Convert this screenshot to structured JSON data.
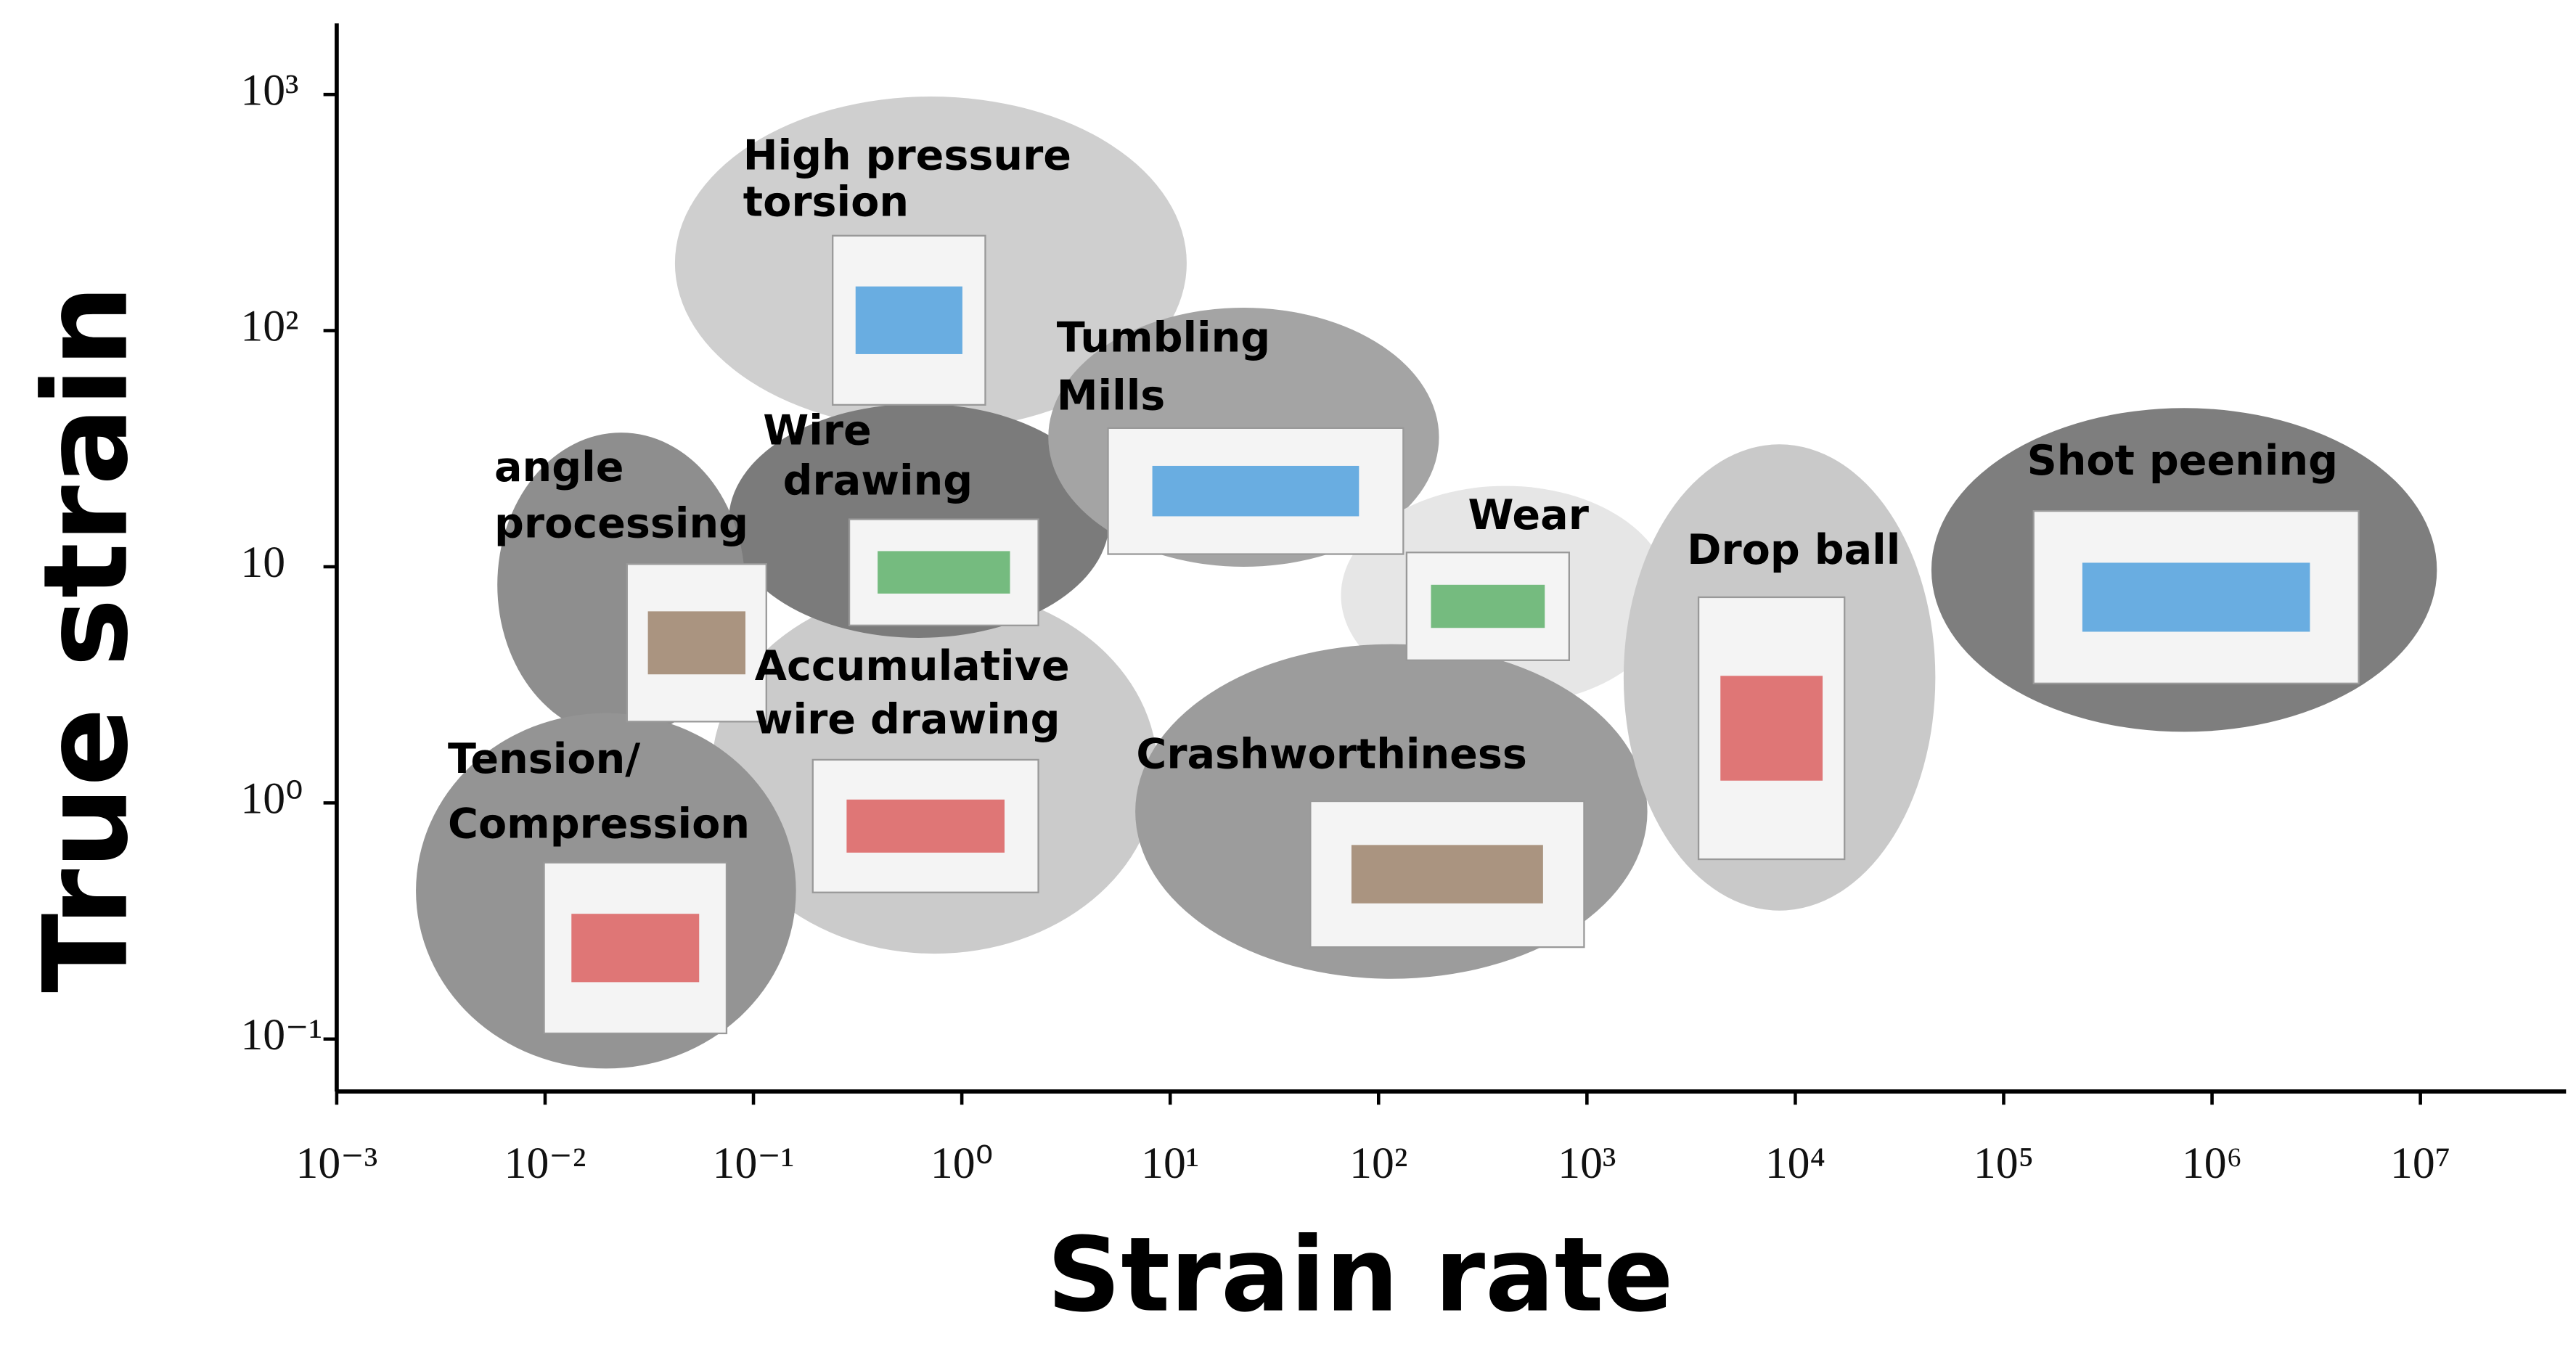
{
  "chart_data": {
    "type": "region",
    "xlabel": "Strain rate",
    "ylabel": "True strain",
    "xscale": "log",
    "yscale": "log",
    "xlim": [
      0.001,
      50000000
    ],
    "ylim": [
      0.06,
      2000
    ],
    "xticks": [
      {
        "value": 0.001,
        "label": "10⁻³"
      },
      {
        "value": 0.01,
        "label": "10⁻²"
      },
      {
        "value": 0.1,
        "label": "10⁻¹"
      },
      {
        "value": 1,
        "label": "10⁰"
      },
      {
        "value": 10,
        "label": "10¹"
      },
      {
        "value": 100,
        "label": "10²"
      },
      {
        "value": 1000,
        "label": "10³"
      },
      {
        "value": 10000,
        "label": "10⁴"
      },
      {
        "value": 100000,
        "label": "10⁵"
      },
      {
        "value": 1000000,
        "label": "10⁶"
      },
      {
        "value": 10000000,
        "label": "10⁷"
      }
    ],
    "yticks": [
      {
        "value": 0.1,
        "label": "10⁻¹"
      },
      {
        "value": 1,
        "label": "10⁰"
      },
      10,
      {
        "value": 100,
        "label": "10²"
      },
      {
        "value": 1000,
        "label": "10³"
      }
    ],
    "regions": [
      {
        "name": [
          "Accumulative",
          "wire drawing"
        ],
        "color": "#cbcbcb",
        "x": [
          0.063,
          8.7
        ],
        "y": [
          0.23,
          8.2
        ]
      },
      {
        "name": [
          "High pressure",
          "torsion"
        ],
        "color": "#cfcfcf",
        "x": [
          0.042,
          12
        ],
        "y": [
          38,
          980
        ]
      },
      {
        "name": [
          "Wire",
          "drawing"
        ],
        "color": "#7b7b7b",
        "x": [
          0.076,
          5.1
        ],
        "y": [
          5,
          49
        ]
      },
      {
        "name": [
          "angle",
          "processing"
        ],
        "color": "#8e8e8e",
        "x": [
          0.0059,
          0.091
        ],
        "y": [
          1.9,
          37
        ]
      },
      {
        "name": [
          "Tension/",
          "Compression"
        ],
        "color": "#949494",
        "x": [
          0.0024,
          0.16
        ],
        "y": [
          0.075,
          2.4
        ]
      },
      {
        "name": [
          "Tumbling",
          "Mills"
        ],
        "color": "#a4a4a4",
        "x": [
          2.6,
          195
        ],
        "y": [
          10,
          125
        ]
      },
      {
        "name": [
          "Wear"
        ],
        "color": "#e6e6e6",
        "x": [
          66,
          2500
        ],
        "y": [
          2.6,
          22
        ]
      },
      {
        "name": [
          "Crashworthiness"
        ],
        "color": "#9c9c9c",
        "x": [
          6.8,
          1950
        ],
        "y": [
          0.18,
          4.7
        ]
      },
      {
        "name": [
          "Drop ball"
        ],
        "color": "#c9c9c9",
        "x": [
          1500,
          47000
        ],
        "y": [
          0.35,
          33
        ]
      },
      {
        "name": [
          "Shot peening"
        ],
        "color": "#7e7e7e",
        "x": [
          45000,
          12000000
        ],
        "y": [
          2,
          47
        ]
      }
    ]
  }
}
